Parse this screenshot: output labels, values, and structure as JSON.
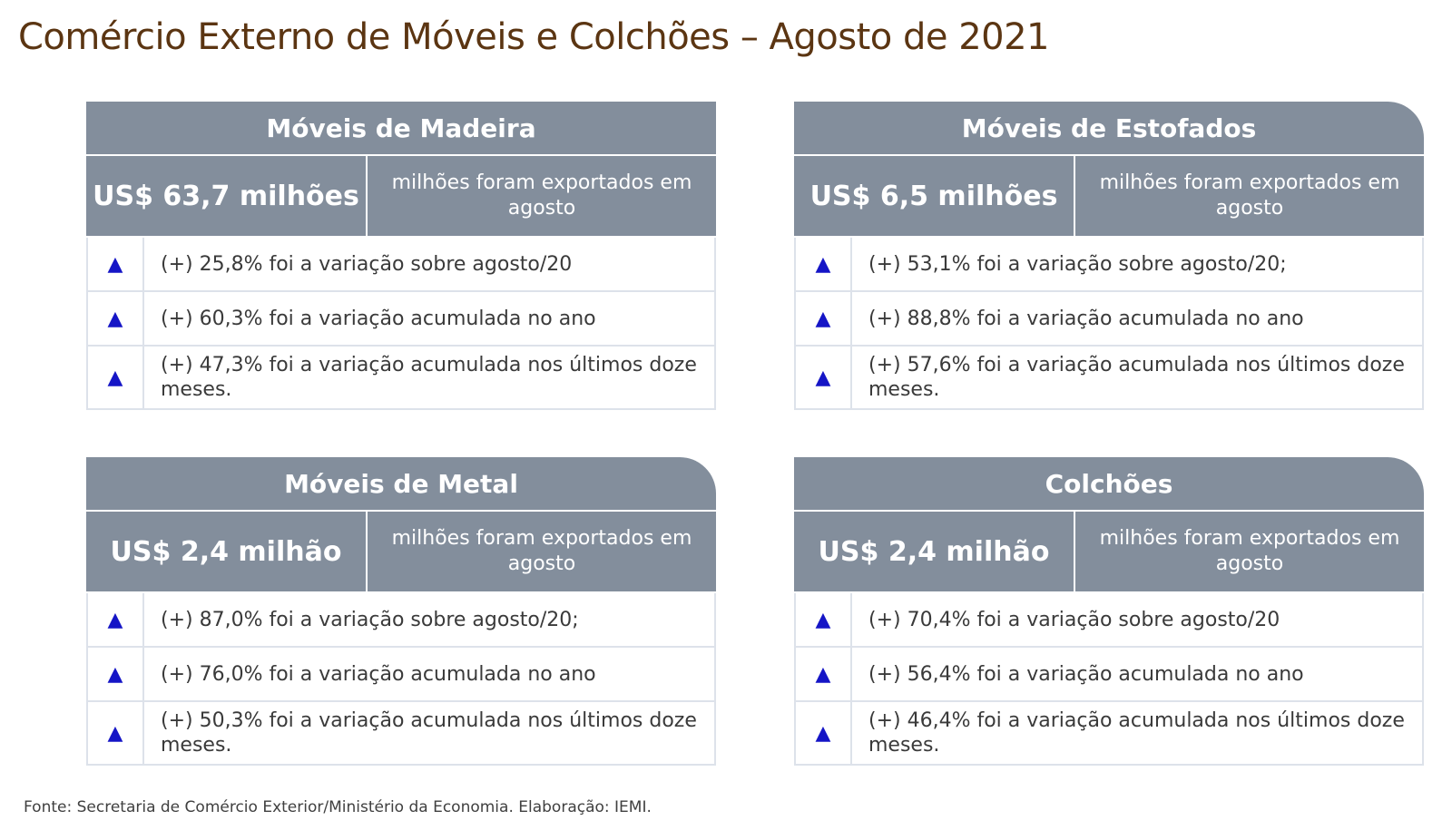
{
  "page": {
    "title": "Comércio Externo de Móveis e Colchões – Agosto de 2021",
    "source": "Fonte: Secretaria de Comércio Exterior/Ministério da Economia. Elaboração: IEMI."
  },
  "colors": {
    "title": "#5b3512",
    "header": "#838e9c",
    "arrow": "#1515c6"
  },
  "cards": [
    {
      "title": "Móveis de Madeira",
      "value": "US$ 63,7 milhões",
      "desc": "milhões foram exportados em agosto",
      "rows": [
        {
          "icon": "up-triangle-icon",
          "text": "(+) 25,8% foi a variação sobre agosto/20"
        },
        {
          "icon": "up-triangle-icon",
          "text": "(+) 60,3% foi a variação acumulada no ano"
        },
        {
          "icon": "up-triangle-icon",
          "text": "(+) 47,3% foi a variação acumulada nos últimos doze meses."
        }
      ]
    },
    {
      "title": "Móveis de Estofados",
      "value": "US$ 6,5 milhões",
      "desc": "milhões foram exportados em agosto",
      "rows": [
        {
          "icon": "up-triangle-icon",
          "text": "(+) 53,1% foi a variação sobre agosto/20;"
        },
        {
          "icon": "up-triangle-icon",
          "text": "(+) 88,8% foi a variação acumulada no ano"
        },
        {
          "icon": "up-triangle-icon",
          "text": "(+) 57,6% foi a variação acumulada nos últimos doze meses."
        }
      ]
    },
    {
      "title": "Móveis de Metal",
      "value": "US$ 2,4 milhão",
      "desc": "milhões foram exportados em agosto",
      "rows": [
        {
          "icon": "up-triangle-icon",
          "text": "(+) 87,0% foi a variação sobre agosto/20;"
        },
        {
          "icon": "up-triangle-icon",
          "text": "(+) 76,0% foi a variação acumulada no ano"
        },
        {
          "icon": "up-triangle-icon",
          "text": "(+) 50,3% foi a variação acumulada nos últimos doze meses."
        }
      ]
    },
    {
      "title": "Colchões",
      "value": "US$ 2,4 milhão",
      "desc": "milhões foram exportados em agosto",
      "rows": [
        {
          "icon": "up-triangle-icon",
          "text": "(+) 70,4% foi a variação sobre agosto/20"
        },
        {
          "icon": "up-triangle-icon",
          "text": "(+) 56,4% foi a variação acumulada no ano"
        },
        {
          "icon": "up-triangle-icon",
          "text": "(+) 46,4% foi a variação acumulada nos últimos doze meses."
        }
      ]
    }
  ]
}
